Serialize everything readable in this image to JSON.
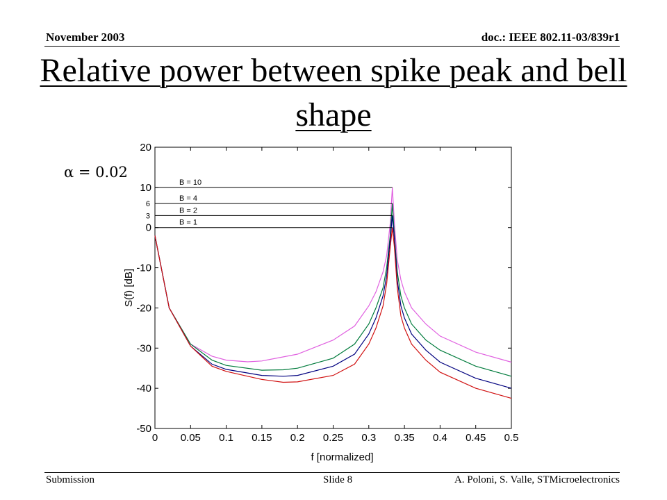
{
  "header": {
    "date": "November 2003",
    "doc_id": "doc.: IEEE 802.11-03/839r1"
  },
  "slide_title": "Relative power between spike peak and bell shape",
  "parameter_label": "α = 0.02",
  "footer": {
    "left": "Submission",
    "center": "Slide 8",
    "right": "A. Poloni, S. Valle, STMicroelectronics"
  },
  "chart_data": {
    "type": "line",
    "title": "",
    "xlabel": "f  [normalized]",
    "ylabel": "S(f)  [dB]",
    "xlim": [
      0,
      0.5
    ],
    "ylim": [
      -50,
      20
    ],
    "x_ticks": [
      0,
      0.05,
      0.1,
      0.15,
      0.2,
      0.25,
      0.3,
      0.35,
      0.4,
      0.45,
      0.5
    ],
    "x_tick_labels": [
      "0",
      "0.05",
      "0.1",
      "0.15",
      "0.2",
      "0.25",
      "0.3",
      "0.35",
      "0.4",
      "0.45",
      "0.5"
    ],
    "y_ticks": [
      -50,
      -40,
      -30,
      -20,
      -10,
      0,
      10,
      20
    ],
    "y_tick_labels": [
      "-50",
      "-40",
      "-30",
      "-20",
      "-10",
      "0",
      "10",
      "20"
    ],
    "grid": false,
    "peak_x": 0.333,
    "series": [
      {
        "name": "B = 10",
        "color": "#e060e0",
        "x": [
          0,
          0.02,
          0.05,
          0.08,
          0.1,
          0.13,
          0.15,
          0.2,
          0.25,
          0.28,
          0.3,
          0.31,
          0.32,
          0.325,
          0.33,
          0.333,
          0.336,
          0.34,
          0.345,
          0.35,
          0.36,
          0.38,
          0.4,
          0.45,
          0.5
        ],
        "y": [
          -2,
          -20,
          -29,
          -32,
          -33,
          -33.4,
          -33.2,
          -31.5,
          -28,
          -24.5,
          -19.5,
          -16,
          -11,
          -7,
          1,
          10,
          1,
          -8,
          -13,
          -16,
          -20,
          -24,
          -27,
          -31,
          -33.5
        ]
      },
      {
        "name": "B = 4",
        "color": "#007b3c",
        "x": [
          0,
          0.02,
          0.05,
          0.08,
          0.1,
          0.15,
          0.18,
          0.2,
          0.25,
          0.28,
          0.3,
          0.31,
          0.32,
          0.325,
          0.33,
          0.333,
          0.336,
          0.34,
          0.345,
          0.35,
          0.36,
          0.38,
          0.4,
          0.45,
          0.5
        ],
        "y": [
          -2,
          -20,
          -29,
          -33,
          -34.3,
          -35.5,
          -35.4,
          -35,
          -32.5,
          -29,
          -24,
          -20,
          -15,
          -10,
          -2,
          6,
          -2,
          -11,
          -17,
          -20,
          -24,
          -28,
          -30.5,
          -34.5,
          -37
        ]
      },
      {
        "name": "B = 2",
        "color": "#00007f",
        "x": [
          0,
          0.02,
          0.05,
          0.08,
          0.1,
          0.15,
          0.18,
          0.2,
          0.25,
          0.28,
          0.3,
          0.31,
          0.32,
          0.325,
          0.33,
          0.333,
          0.336,
          0.34,
          0.345,
          0.35,
          0.36,
          0.38,
          0.4,
          0.45,
          0.5
        ],
        "y": [
          -2,
          -20,
          -29.5,
          -34,
          -35.3,
          -36.8,
          -37,
          -36.8,
          -34.5,
          -31.5,
          -26.5,
          -22.5,
          -17,
          -12,
          -3,
          3,
          -3,
          -13,
          -19.5,
          -22.5,
          -26.5,
          -30.5,
          -33.5,
          -37.5,
          -40
        ]
      },
      {
        "name": "B = 1",
        "color": "#d01010",
        "x": [
          0,
          0.02,
          0.05,
          0.08,
          0.1,
          0.15,
          0.18,
          0.2,
          0.25,
          0.28,
          0.3,
          0.31,
          0.32,
          0.325,
          0.33,
          0.333,
          0.336,
          0.34,
          0.345,
          0.35,
          0.36,
          0.38,
          0.4,
          0.45,
          0.5
        ],
        "y": [
          -2,
          -20,
          -29.5,
          -34.5,
          -35.8,
          -37.8,
          -38.5,
          -38.4,
          -36.8,
          -34,
          -29,
          -25,
          -19.5,
          -14,
          -5,
          0,
          -5,
          -15,
          -22,
          -25,
          -29,
          -33,
          -36,
          -40,
          -42.5
        ]
      }
    ],
    "annotations": [
      {
        "label": "B = 10",
        "level_db": 10,
        "tick_label": ""
      },
      {
        "label": "B = 4",
        "level_db": 6,
        "tick_label": "6"
      },
      {
        "label": "B = 2",
        "level_db": 3,
        "tick_label": "3"
      },
      {
        "label": "B = 1",
        "level_db": 0,
        "tick_label": ""
      }
    ]
  }
}
